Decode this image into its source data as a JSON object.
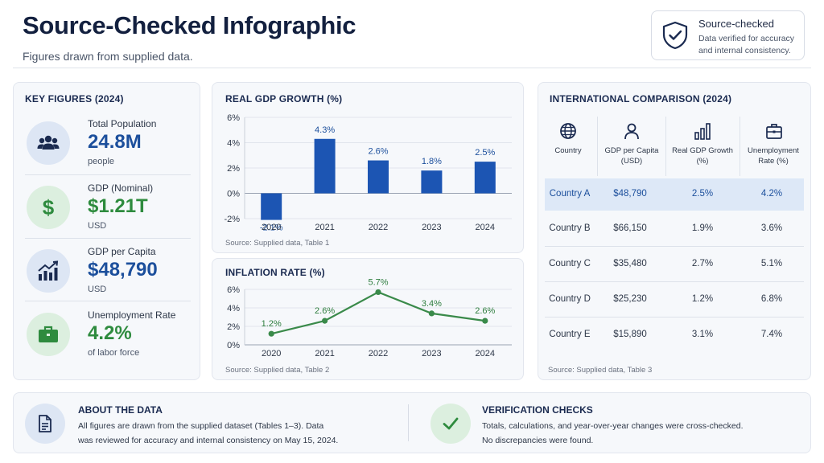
{
  "header": {
    "title": "Source-Checked Infographic",
    "subtitle": "Figures drawn from supplied data."
  },
  "badge": {
    "title": "Source-checked",
    "text": "Data verified for accuracy and internal consistency.",
    "icon": "shield-check-icon"
  },
  "key_figures": {
    "title": "KEY FIGURES (2024)",
    "items": [
      {
        "label": "Total Population",
        "value": "24.8M",
        "unit": "people",
        "icon": "people-icon",
        "color": "#1c4f9c"
      },
      {
        "label": "GDP (Nominal)",
        "value": "$1.21T",
        "unit": "USD",
        "icon": "dollar-icon",
        "color": "#2e8b3e"
      },
      {
        "label": "GDP per Capita",
        "value": "$48,790",
        "unit": "USD",
        "icon": "growth-chart-icon",
        "color": "#1c4f9c"
      },
      {
        "label": "Unemployment Rate",
        "value": "4.2%",
        "unit": "of labor force",
        "icon": "briefcase-icon",
        "color": "#2e8b3e"
      }
    ]
  },
  "chart_data": [
    {
      "type": "bar",
      "title": "REAL GDP GROWTH (%)",
      "categories": [
        "2020",
        "2021",
        "2022",
        "2023",
        "2024"
      ],
      "values": [
        -2.1,
        4.3,
        2.6,
        1.8,
        2.5
      ],
      "data_labels": [
        "-2.1%",
        "4.3%",
        "2.6%",
        "1.8%",
        "2.5%"
      ],
      "yticks": [
        "6%",
        "4%",
        "2%",
        "0%",
        "-2%"
      ],
      "ylim": [
        -2,
        6
      ],
      "grid": true,
      "color": "#1c55b3",
      "source": "Source: Supplied data, Table 1"
    },
    {
      "type": "line",
      "title": "INFLATION RATE (%)",
      "categories": [
        "2020",
        "2021",
        "2022",
        "2023",
        "2024"
      ],
      "values": [
        1.2,
        2.6,
        5.7,
        3.4,
        2.6
      ],
      "data_labels": [
        "1.2%",
        "2.6%",
        "5.7%",
        "3.4%",
        "2.6%"
      ],
      "yticks": [
        "6%",
        "4%",
        "2%",
        "0%"
      ],
      "ylim": [
        0,
        6
      ],
      "grid": true,
      "color": "#3a8a4a",
      "source": "Source: Supplied data, Table 2"
    },
    {
      "type": "table",
      "title": "INTERNATIONAL COMPARISON (2024)",
      "columns": [
        {
          "label": "Country",
          "icon": "globe-icon"
        },
        {
          "label": "GDP per Capita (USD)",
          "icon": "person-icon"
        },
        {
          "label": "Real GDP Growth (%)",
          "icon": "bar-chart-icon"
        },
        {
          "label": "Unemployment Rate (%)",
          "icon": "briefcase-icon"
        }
      ],
      "rows": [
        [
          "Country A",
          "$48,790",
          "2.5%",
          "4.2%"
        ],
        [
          "Country B",
          "$66,150",
          "1.9%",
          "3.6%"
        ],
        [
          "Country C",
          "$35,480",
          "2.7%",
          "5.1%"
        ],
        [
          "Country D",
          "$25,230",
          "1.2%",
          "6.8%"
        ],
        [
          "Country E",
          "$15,890",
          "3.1%",
          "7.4%"
        ]
      ],
      "highlighted_row": 0,
      "source": "Source: Supplied data, Table 3"
    }
  ],
  "about": {
    "title": "ABOUT THE DATA",
    "line1": "All figures are drawn from the supplied dataset (Tables 1–3). Data",
    "line2": "was reviewed for accuracy and internal consistency on May 15, 2024.",
    "icon": "document-icon"
  },
  "verification": {
    "title": "VERIFICATION CHECKS",
    "line1": "Totals, calculations, and year-over-year changes were cross-checked.",
    "line2": "No discrepancies were found.",
    "icon": "checkmark-icon"
  },
  "colors": {
    "primary": "#1c4f9c",
    "green": "#2e8b3e",
    "highlight": "#dde8f7"
  }
}
